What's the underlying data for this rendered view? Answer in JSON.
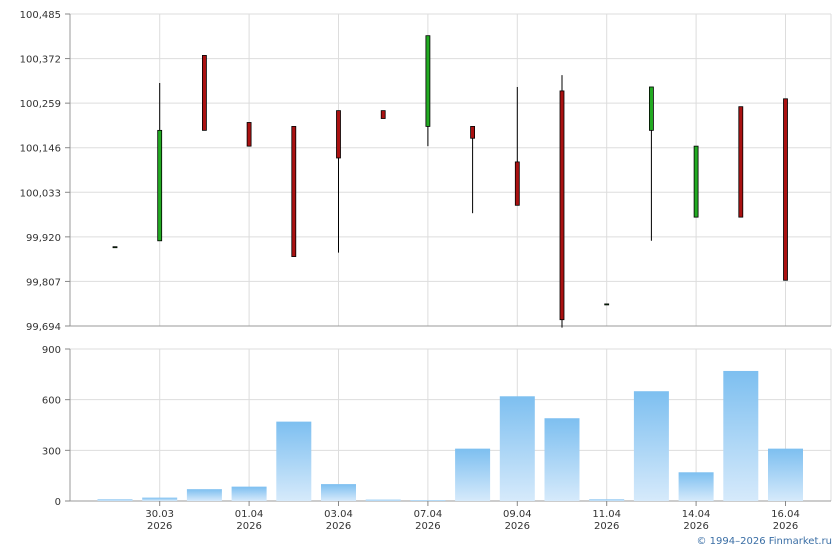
{
  "chart_data": [
    {
      "type": "candlestick",
      "y_ticks": [
        "100,485",
        "100,372",
        "100,259",
        "100,146",
        "100,033",
        "99,920",
        "99,807",
        "99,694"
      ],
      "ylim": [
        99.694,
        100.485
      ],
      "grid": true,
      "candles": [
        {
          "open": 99.895,
          "high": 99.895,
          "low": 99.895,
          "close": 99.895
        },
        {
          "open": 99.91,
          "high": 100.31,
          "low": 99.91,
          "close": 100.19
        },
        {
          "open": 100.38,
          "high": 100.38,
          "low": 100.19,
          "close": 100.19
        },
        {
          "open": 100.21,
          "high": 100.21,
          "low": 100.15,
          "close": 100.15
        },
        {
          "open": 100.2,
          "high": 100.2,
          "low": 99.87,
          "close": 99.87
        },
        {
          "open": 100.24,
          "high": 100.24,
          "low": 99.88,
          "close": 100.12
        },
        {
          "open": 100.24,
          "high": 100.24,
          "low": 100.22,
          "close": 100.22
        },
        {
          "open": 100.2,
          "high": 100.43,
          "low": 100.15,
          "close": 100.43
        },
        {
          "open": 100.2,
          "high": 100.2,
          "low": 99.98,
          "close": 100.17
        },
        {
          "open": 100.11,
          "high": 100.3,
          "low": 100.0,
          "close": 100.0
        },
        {
          "open": 100.29,
          "high": 100.33,
          "low": 99.69,
          "close": 99.71
        },
        {
          "open": 99.75,
          "high": 99.75,
          "low": 99.75,
          "close": 99.75
        },
        {
          "open": 100.19,
          "high": 100.3,
          "low": 99.91,
          "close": 100.3
        },
        {
          "open": 99.97,
          "high": 100.15,
          "low": 99.97,
          "close": 100.15
        },
        {
          "open": 100.25,
          "high": 100.25,
          "low": 99.97,
          "close": 99.97
        },
        {
          "open": 100.27,
          "high": 100.27,
          "low": 99.81,
          "close": 99.81
        }
      ],
      "up_color": "#22aa22",
      "down_color": "#aa1111"
    },
    {
      "type": "bar",
      "y_ticks": [
        "900",
        "600",
        "300",
        "0"
      ],
      "ylim": [
        0,
        900
      ],
      "values": [
        10,
        20,
        70,
        85,
        470,
        100,
        8,
        5,
        310,
        620,
        490,
        10,
        650,
        170,
        770,
        310
      ],
      "bar_color_top": "#7dbff0",
      "bar_color_bottom": "#d6eafb"
    }
  ],
  "x_axis": {
    "tick_labels": [
      {
        "date": "30.03",
        "year": "2026",
        "slot": 1
      },
      {
        "date": "01.04",
        "year": "2026",
        "slot": 3
      },
      {
        "date": "03.04",
        "year": "2026",
        "slot": 5
      },
      {
        "date": "07.04",
        "year": "2026",
        "slot": 7
      },
      {
        "date": "09.04",
        "year": "2026",
        "slot": 9
      },
      {
        "date": "11.04",
        "year": "2026",
        "slot": 11
      },
      {
        "date": "14.04",
        "year": "2026",
        "slot": 13
      },
      {
        "date": "16.04",
        "year": "2026",
        "slot": 15
      }
    ]
  },
  "credit": "© 1994–2026 Finmarket.ru"
}
